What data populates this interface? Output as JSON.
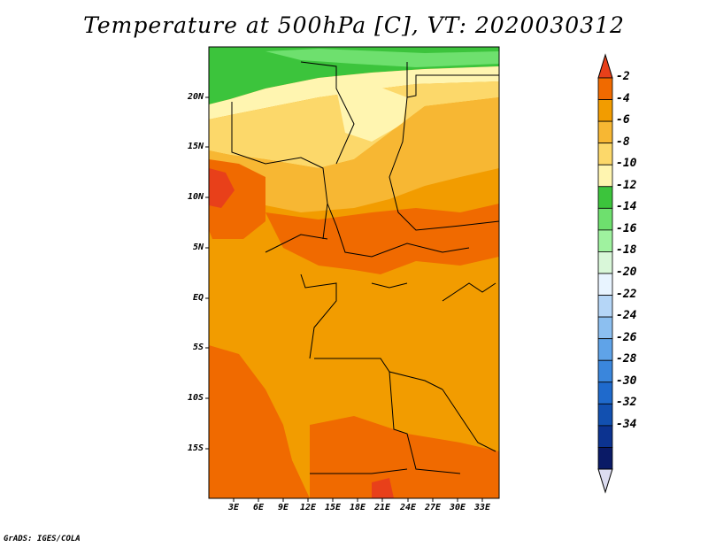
{
  "title": "Temperature at 500hPa [C], VT: 2020030312",
  "credit": "GrADS: IGES/COLA",
  "map": {
    "lat_labels": [
      "20N",
      "15N",
      "10N",
      "5N",
      "EQ",
      "5S",
      "10S",
      "15S"
    ],
    "lon_labels": [
      "3E",
      "6E",
      "9E",
      "12E",
      "15E",
      "18E",
      "21E",
      "24E",
      "27E",
      "30E",
      "33E"
    ]
  },
  "colorbar": {
    "labels": [
      "-2",
      "-4",
      "-6",
      "-8",
      "-10",
      "-12",
      "-14",
      "-16",
      "-18",
      "-20",
      "-22",
      "-24",
      "-26",
      "-28",
      "-30",
      "-32",
      "-34"
    ],
    "colors": [
      "#e8401a",
      "#f06a00",
      "#f29c00",
      "#f7b733",
      "#fcd86a",
      "#fff5b0",
      "#3cc43c",
      "#6ee06e",
      "#9ff29f",
      "#d9f7d9",
      "#e8f4ff",
      "#b5d6f7",
      "#8cbff0",
      "#5fa3e8",
      "#3a86dc",
      "#1f6acc",
      "#1250b0",
      "#0c3390",
      "#0a1a66",
      "#dcdcf0"
    ]
  }
}
